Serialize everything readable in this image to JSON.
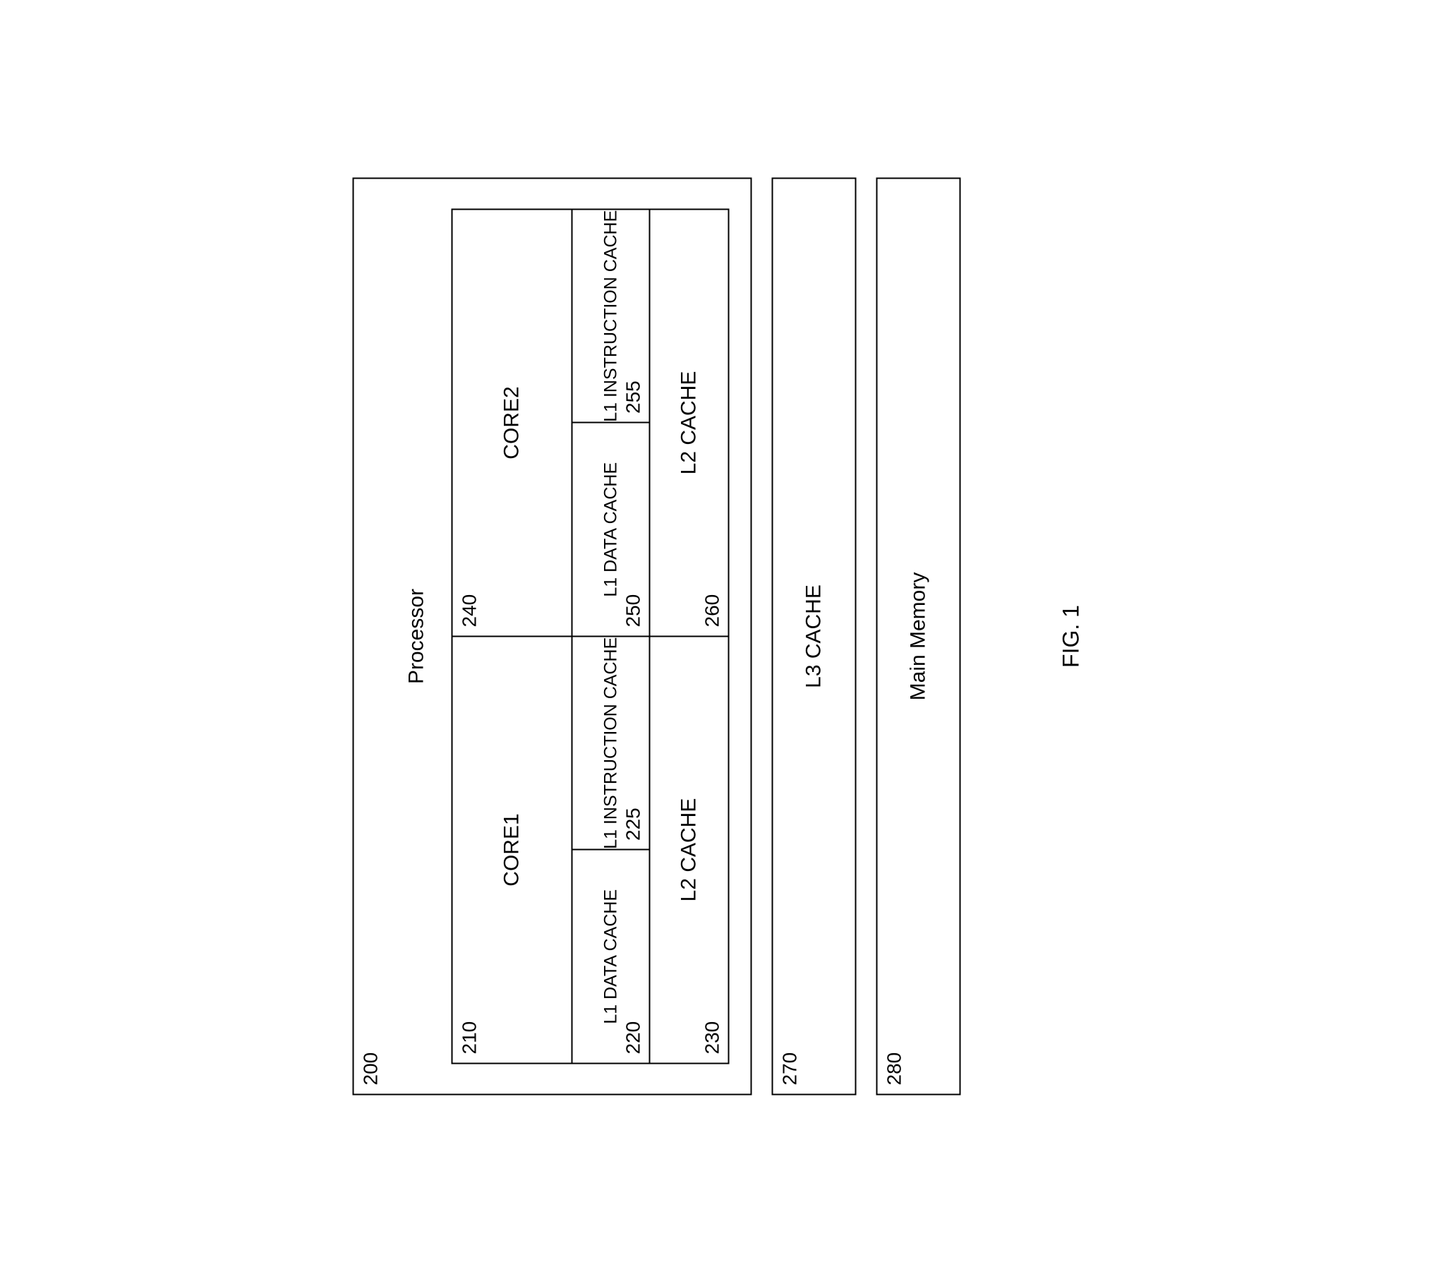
{
  "diagram": {
    "type": "block-diagram",
    "orientation_deg": -90,
    "stroke_color": "#000000",
    "background_color": "#ffffff",
    "font_family": "Arial",
    "title_fontsize": 30,
    "label_fontsize": 30,
    "refnum_fontsize": 28,
    "l1_label_fontsize": 25,
    "caption_fontsize": 32,
    "processor": {
      "ref": "200",
      "title": "Processor",
      "cores": [
        {
          "ref": "210",
          "label": "CORE1",
          "l1_data": {
            "ref": "220",
            "label": "L1 DATA CACHE"
          },
          "l1_instr": {
            "ref": "225",
            "label": "L1 INSTRUCTION CACHE"
          },
          "l2": {
            "ref": "230",
            "label": "L2 CACHE"
          }
        },
        {
          "ref": "240",
          "label": "CORE2",
          "l1_data": {
            "ref": "250",
            "label": "L1 DATA CACHE"
          },
          "l1_instr": {
            "ref": "255",
            "label": "L1 INSTRUCTION CACHE"
          },
          "l2": {
            "ref": "260",
            "label": "L2 CACHE"
          }
        }
      ]
    },
    "l3_cache": {
      "ref": "270",
      "label": "L3 CACHE"
    },
    "main_memory": {
      "ref": "280",
      "label": "Main Memory"
    },
    "caption": "FIG. 1"
  }
}
